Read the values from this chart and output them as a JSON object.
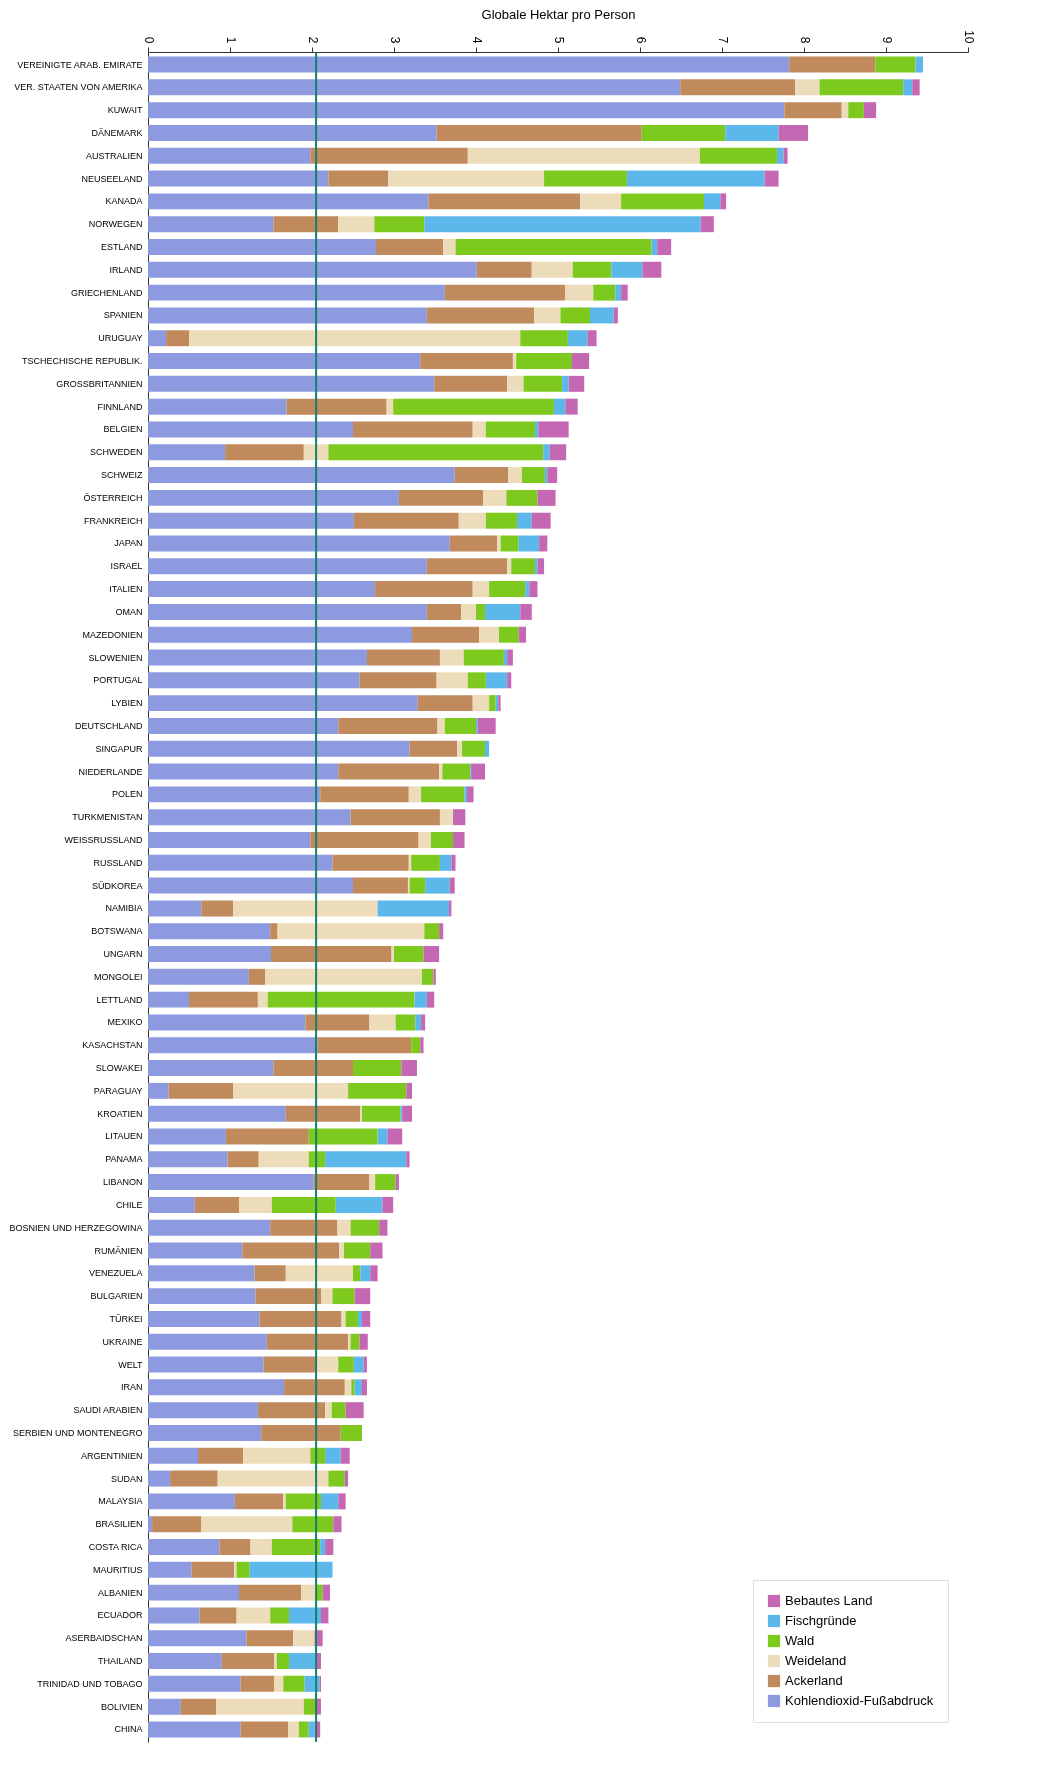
{
  "chart_data": {
    "type": "bar",
    "orientation": "horizontal",
    "stacked": true,
    "xlabel": "Globale Hektar pro Person",
    "xlim": [
      0,
      10
    ],
    "xticks": [
      0,
      1,
      2,
      3,
      4,
      5,
      6,
      7,
      8,
      9,
      10
    ],
    "grid": false,
    "legend": "bottom right",
    "categories": [
      "VEREINIGTE ARAB. EMIRATE",
      "VER. STAATEN VON AMERIKA",
      "KUWAIT",
      "DÄNEMARK",
      "AUSTRALIEN",
      "NEUSEELAND",
      "KANADA",
      "NORWEGEN",
      "ESTLAND",
      "IRLAND",
      "GRIECHENLAND",
      "SPANIEN",
      "URUGUAY",
      "TSCHECHISCHE REPUBLIK.",
      "GROSSBRITANNIEN",
      "FINNLAND",
      "BELGIEN",
      "SCHWEDEN",
      "SCHWEIZ",
      "ÖSTERREICH",
      "FRANKREICH",
      "JAPAN",
      "ISRAEL",
      "ITALIEN",
      "OMAN",
      "MAZEDONIEN",
      "SLOWENIEN",
      "PORTUGAL",
      "LYBIEN",
      "DEUTSCHLAND",
      "SINGAPUR",
      "NIEDERLANDE",
      "POLEN",
      "TURKMENISTAN",
      "WEISSRUSSLAND",
      "RUSSLAND",
      "SÜDKOREA",
      "NAMIBIA",
      "BOTSWANA",
      "UNGARN",
      "MONGOLEI",
      "LETTLAND",
      "MEXIKO",
      "KASACHSTAN",
      "SLOWAKEI",
      "PARAGUAY",
      "KROATIEN",
      "LITAUEN",
      "PANAMA",
      "LIBANON",
      "CHILE",
      "BOSNIEN UND HERZEGOWINA",
      "RUMÄNIEN",
      "VENEZUELA",
      "BULGARIEN",
      "TÜRKEI",
      "UKRAINE",
      "WELT",
      "IRAN",
      "SAUDI ARABIEN",
      "SERBIEN UND MONTENEGRO",
      "ARGENTINIEN",
      "SUDAN",
      "MALAYSIA",
      "BRASILIEN",
      "COSTA RICA",
      "MAURITIUS",
      "ALBANIEN",
      "ECUADOR",
      "ASERBAIDSCHAN",
      "THAILAND",
      "TRINIDAD UND TOBAGO",
      "BOLIVIEN",
      "CHINA"
    ],
    "series": [
      {
        "name": "Kohlendioxid-Fußabdruck",
        "color": "#8e9ae0",
        "values": [
          7.82,
          6.49,
          7.76,
          3.52,
          1.98,
          2.2,
          3.42,
          1.53,
          2.78,
          4.01,
          3.62,
          3.4,
          0.22,
          3.32,
          3.49,
          1.69,
          2.5,
          0.94,
          3.74,
          3.06,
          2.51,
          3.68,
          3.4,
          2.77,
          3.4,
          3.22,
          2.67,
          2.58,
          3.29,
          2.32,
          3.19,
          2.32,
          2.1,
          2.47,
          1.98,
          2.25,
          2.5,
          0.65,
          1.49,
          1.5,
          1.23,
          0.5,
          1.92,
          2.07,
          1.53,
          0.25,
          1.68,
          0.95,
          0.97,
          2.02,
          0.57,
          1.49,
          1.15,
          1.3,
          1.31,
          1.36,
          1.45,
          1.41,
          1.66,
          1.34,
          1.38,
          0.61,
          0.27,
          1.06,
          0.05,
          0.87,
          0.53,
          1.11,
          0.63,
          1.2,
          0.9,
          1.13,
          0.4,
          1.13
        ]
      },
      {
        "name": "Ackerland",
        "color": "#c08a5c",
        "values": [
          1.05,
          1.4,
          0.7,
          2.5,
          1.92,
          0.73,
          1.85,
          0.79,
          0.82,
          0.67,
          1.47,
          1.31,
          0.28,
          1.13,
          0.89,
          1.22,
          1.46,
          0.96,
          0.65,
          1.03,
          1.28,
          0.58,
          0.98,
          1.19,
          0.42,
          0.82,
          0.89,
          0.94,
          0.67,
          1.21,
          0.58,
          1.23,
          1.08,
          1.09,
          1.32,
          0.93,
          0.67,
          0.39,
          0.09,
          1.47,
          0.2,
          0.84,
          0.78,
          1.14,
          0.97,
          0.79,
          0.91,
          1.01,
          0.38,
          0.68,
          0.54,
          0.82,
          1.18,
          0.38,
          0.8,
          1.0,
          0.99,
          0.65,
          0.74,
          0.82,
          0.97,
          0.55,
          0.58,
          0.59,
          0.6,
          0.38,
          0.52,
          0.76,
          0.45,
          0.57,
          0.64,
          0.41,
          0.43,
          0.58
        ]
      },
      {
        "name": "Weideland",
        "color": "#eddcb9",
        "values": [
          null,
          0.3,
          0.08,
          null,
          2.83,
          1.9,
          0.5,
          0.44,
          0.15,
          0.5,
          0.34,
          0.32,
          4.04,
          0.04,
          0.2,
          0.08,
          0.16,
          0.3,
          0.17,
          0.28,
          0.33,
          0.04,
          0.05,
          0.2,
          0.18,
          0.24,
          0.29,
          0.38,
          0.2,
          0.09,
          0.06,
          0.04,
          0.15,
          0.16,
          0.15,
          0.03,
          0.02,
          1.76,
          1.79,
          0.03,
          1.91,
          0.12,
          0.32,
          null,
          null,
          1.4,
          0.02,
          null,
          0.61,
          0.07,
          0.4,
          0.16,
          0.06,
          0.82,
          0.14,
          0.05,
          0.03,
          0.26,
          0.08,
          0.08,
          null,
          0.82,
          1.35,
          0.03,
          1.11,
          0.26,
          0.03,
          0.19,
          0.41,
          0.26,
          0.03,
          0.11,
          1.07,
          0.13
        ]
      },
      {
        "name": "Wald",
        "color": "#7dc91e",
        "values": [
          0.49,
          1.02,
          0.19,
          1.02,
          0.94,
          1.01,
          1.01,
          0.61,
          2.39,
          0.47,
          0.27,
          0.36,
          0.58,
          0.68,
          0.47,
          1.96,
          0.6,
          2.62,
          0.28,
          0.38,
          0.38,
          0.22,
          0.29,
          0.44,
          0.11,
          0.24,
          0.49,
          0.22,
          0.08,
          0.38,
          0.28,
          0.34,
          0.53,
          null,
          0.27,
          0.35,
          0.19,
          null,
          0.18,
          0.36,
          0.14,
          1.79,
          0.24,
          0.11,
          0.59,
          0.71,
          0.47,
          0.84,
          0.2,
          0.25,
          0.78,
          0.35,
          0.32,
          0.09,
          0.27,
          0.15,
          0.11,
          0.19,
          0.04,
          0.17,
          0.26,
          0.18,
          0.2,
          0.43,
          0.5,
          0.59,
          0.16,
          0.07,
          0.23,
          null,
          0.15,
          0.26,
          0.16,
          0.12
        ]
      },
      {
        "name": "Fischgründe",
        "color": "#5cb8ea",
        "values": [
          0.09,
          0.11,
          null,
          0.65,
          0.08,
          1.68,
          0.2,
          3.37,
          0.07,
          0.38,
          0.07,
          0.29,
          0.24,
          null,
          0.08,
          0.14,
          0.04,
          0.08,
          0.03,
          null,
          0.18,
          0.25,
          0.03,
          0.05,
          0.43,
          null,
          0.04,
          0.26,
          0.03,
          0.02,
          0.05,
          0.01,
          0.03,
          null,
          null,
          0.14,
          0.3,
          0.87,
          null,
          null,
          null,
          0.15,
          0.07,
          null,
          null,
          null,
          0.02,
          0.12,
          0.99,
          null,
          0.57,
          null,
          null,
          0.12,
          null,
          0.05,
          null,
          0.12,
          0.09,
          null,
          null,
          0.19,
          null,
          0.21,
          null,
          0.06,
          1.01,
          null,
          0.39,
          null,
          0.34,
          0.18,
          null,
          0.07
        ]
      },
      {
        "name": "Bebautes Land",
        "color": "#c468b3",
        "values": [
          null,
          0.09,
          0.15,
          0.36,
          0.05,
          0.17,
          0.07,
          0.16,
          0.17,
          0.23,
          0.08,
          0.05,
          0.11,
          0.21,
          0.19,
          0.15,
          0.37,
          0.2,
          0.12,
          0.22,
          0.23,
          0.1,
          0.08,
          0.1,
          0.14,
          0.09,
          0.07,
          0.05,
          0.03,
          0.22,
          null,
          0.17,
          0.08,
          0.15,
          0.14,
          0.05,
          0.06,
          0.03,
          0.05,
          0.19,
          0.03,
          0.09,
          0.05,
          0.04,
          0.19,
          0.07,
          0.12,
          0.18,
          0.04,
          0.04,
          0.13,
          0.1,
          0.15,
          0.09,
          0.19,
          0.1,
          0.1,
          0.04,
          0.06,
          0.22,
          null,
          0.11,
          0.04,
          0.09,
          0.1,
          0.1,
          null,
          0.09,
          0.09,
          0.1,
          0.05,
          0.02,
          0.05,
          0.07
        ]
      }
    ],
    "ref_lines": [
      {
        "axis": "x",
        "value": 2.05,
        "color": "#14806a"
      }
    ]
  }
}
